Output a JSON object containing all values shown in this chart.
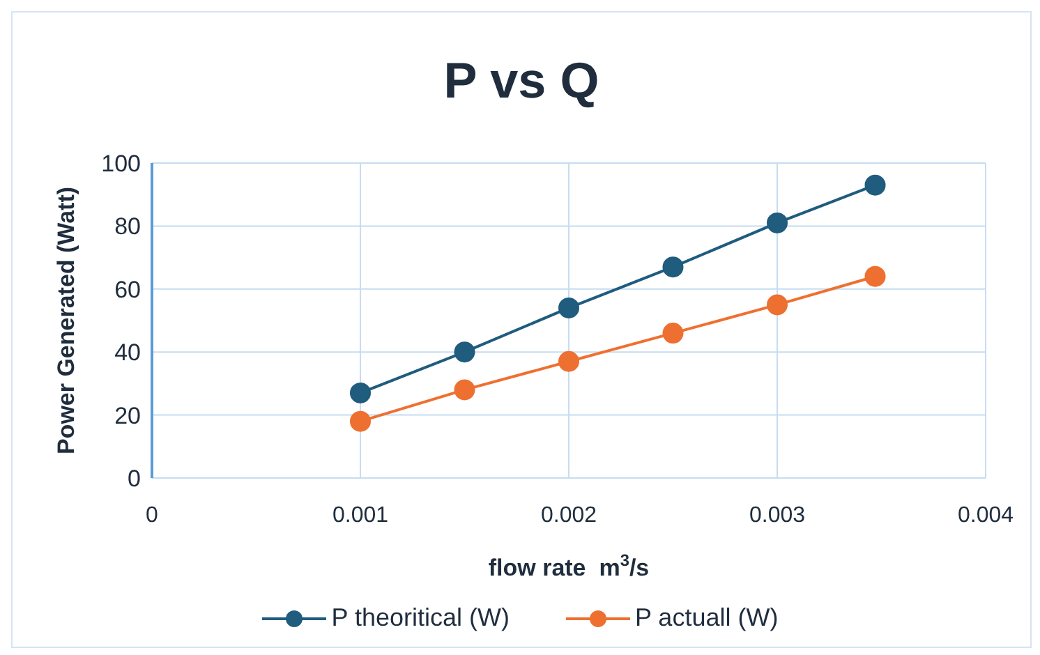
{
  "chart_data": {
    "type": "line",
    "title": "P vs Q",
    "xlabel": "flow rate  m$^{3}$/s",
    "ylabel": "Power Generated (Watt)",
    "x": [
      0.001,
      0.0015,
      0.002,
      0.0025,
      0.003,
      0.00347
    ],
    "series": [
      {
        "name": "P theoritical (W)",
        "color": "#1f5c7e",
        "values": [
          27,
          40,
          54,
          67,
          81,
          93
        ]
      },
      {
        "name": "P actuall (W)",
        "color": "#ee7031",
        "values": [
          18,
          28,
          37,
          46,
          55,
          64
        ]
      }
    ],
    "xlim": [
      0,
      0.004
    ],
    "xticks": [
      0,
      0.001,
      0.002,
      0.003,
      0.004
    ],
    "ylim": [
      0,
      100
    ],
    "yticks": [
      0,
      20,
      40,
      60,
      80,
      100
    ],
    "grid": true,
    "legend": "bottom",
    "marker": "circle",
    "line_style": "solid"
  }
}
